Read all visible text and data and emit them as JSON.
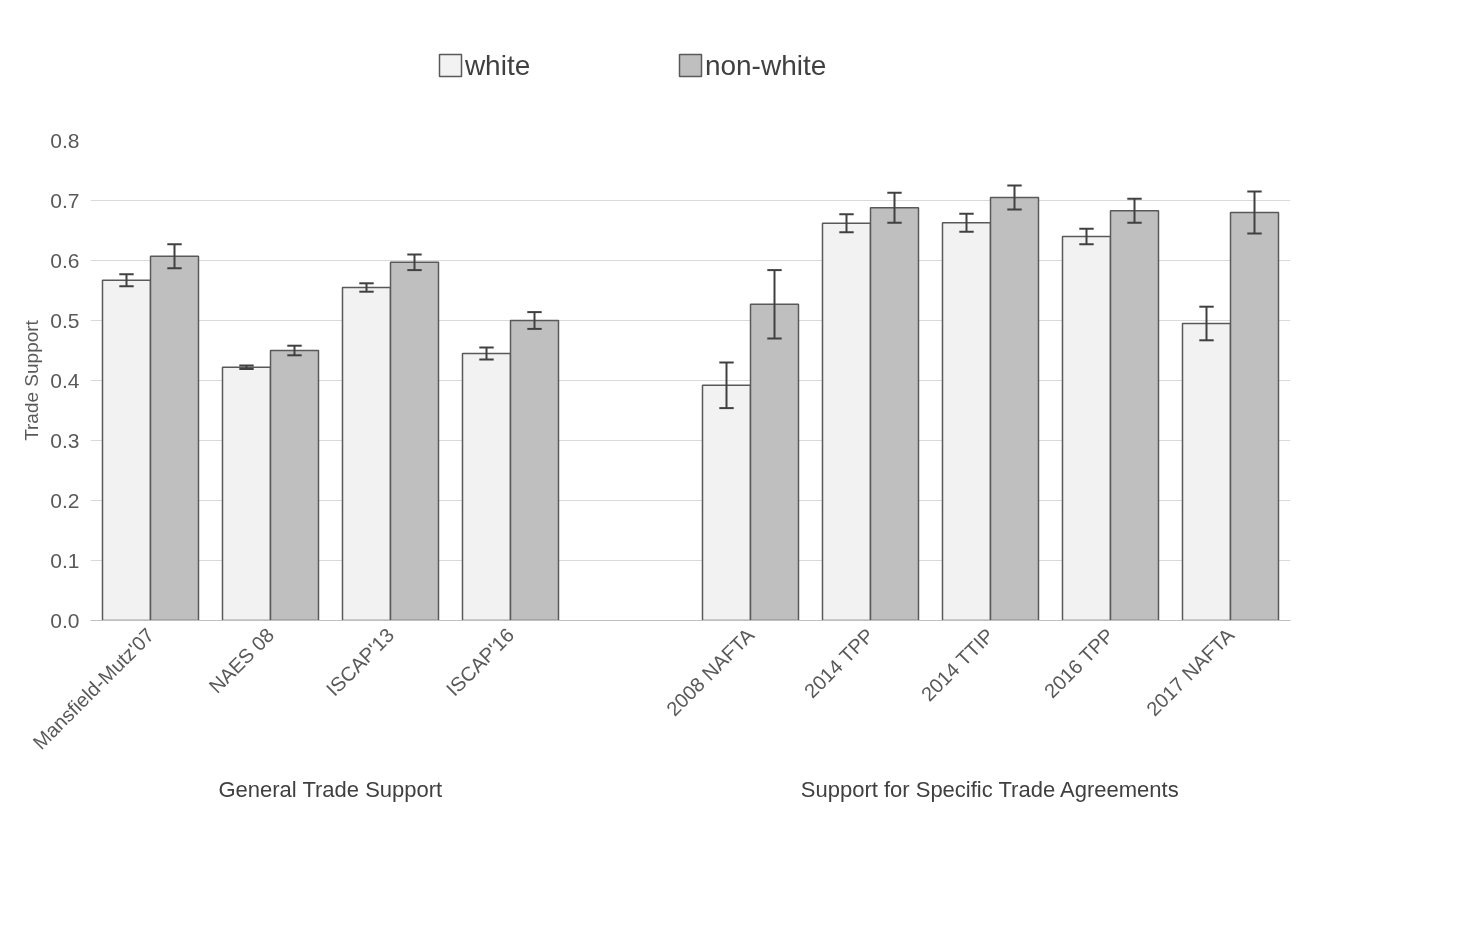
{
  "chart_data": {
    "type": "bar",
    "ylabel": "Trade Support",
    "categories": [
      "Mansfield-Mutz'07",
      "NAES 08",
      "ISCAP'13",
      "ISCAP'16",
      null,
      "2008 NAFTA",
      "2014 TPP",
      "2014 TTIP",
      "2016 TPP",
      "2017 NAFTA"
    ],
    "series": [
      {
        "name": "white",
        "color": "#f2f2f2",
        "values": [
          0.567,
          0.422,
          0.555,
          0.445,
          null,
          0.392,
          0.662,
          0.663,
          0.64,
          0.495
        ],
        "errors": [
          0.01,
          0.003,
          0.007,
          0.01,
          null,
          0.038,
          0.015,
          0.015,
          0.013,
          0.028
        ]
      },
      {
        "name": "non-white",
        "color": "#bfbfbf",
        "values": [
          0.607,
          0.45,
          0.597,
          0.5,
          null,
          0.527,
          0.688,
          0.705,
          0.683,
          0.68
        ],
        "errors": [
          0.02,
          0.008,
          0.013,
          0.014,
          null,
          0.057,
          0.025,
          0.02,
          0.02,
          0.035
        ]
      }
    ],
    "ylim": [
      0,
      0.8
    ],
    "yticks": [
      {
        "value": 0,
        "label": "0.0"
      },
      0.1,
      0.2,
      0.3,
      0.4,
      0.5,
      0.6,
      0.7,
      0.8
    ],
    "grid": "y",
    "legend": "top",
    "annotations": [
      "General Trade Support",
      "Support for Specific Trade Agreements"
    ]
  }
}
